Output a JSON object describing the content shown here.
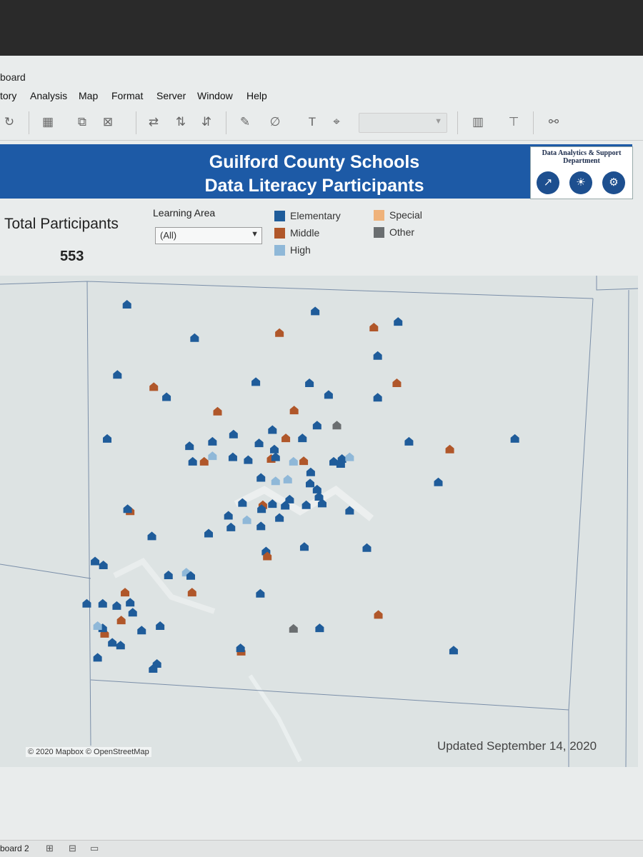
{
  "window": {
    "title": "board"
  },
  "menu": [
    "tory",
    "Analysis",
    "Map",
    "Format",
    "Server",
    "Window",
    "Help"
  ],
  "toolbar": {
    "icons": [
      "redo-icon",
      "new-worksheet-icon",
      "duplicate-icon",
      "clear-sheet-icon",
      "swap-icon",
      "sort-ascending-icon",
      "sort-descending-icon",
      "highlight-icon",
      "group-icon",
      "label-icon",
      "pin-icon",
      "show-cards-icon",
      "presentation-icon",
      "share-icon"
    ]
  },
  "dashboard": {
    "title_line1": "Guilford County Schools",
    "title_line2": "Data Literacy Participants",
    "logo": {
      "text_line1": "Data Analytics & Support",
      "text_line2": "Department",
      "icons": [
        "chart-icon",
        "lightbulb-icon",
        "gears-icon"
      ]
    },
    "kpi": {
      "label": "Total Participants",
      "value": "553"
    },
    "filter": {
      "label": "Learning Area",
      "value": "(All)"
    },
    "legend": [
      {
        "label": "Elementary",
        "color": "#1f5c9a"
      },
      {
        "label": "Middle",
        "color": "#b0572a"
      },
      {
        "label": "High",
        "color": "#8fb8d8"
      },
      {
        "label": "Special",
        "color": "#efb27a"
      },
      {
        "label": "Other",
        "color": "#6a6e70"
      }
    ],
    "attribution": "© 2020 Mapbox © OpenStreetMap",
    "updated": "Updated September 14, 2020"
  },
  "map_points": [
    {
      "t": "Elementary",
      "lon": 0.199,
      "lat": 0.857
    },
    {
      "t": "Elementary",
      "lon": 0.494,
      "lat": 0.845
    },
    {
      "t": "Elementary",
      "lon": 0.624,
      "lat": 0.826
    },
    {
      "t": "Middle",
      "lon": 0.438,
      "lat": 0.806
    },
    {
      "t": "Middle",
      "lon": 0.586,
      "lat": 0.816
    },
    {
      "t": "Elementary",
      "lon": 0.305,
      "lat": 0.797
    },
    {
      "t": "Elementary",
      "lon": 0.592,
      "lat": 0.765
    },
    {
      "t": "Elementary",
      "lon": 0.184,
      "lat": 0.731
    },
    {
      "t": "Elementary",
      "lon": 0.401,
      "lat": 0.718
    },
    {
      "t": "Elementary",
      "lon": 0.485,
      "lat": 0.716
    },
    {
      "t": "Middle",
      "lon": 0.241,
      "lat": 0.709
    },
    {
      "t": "Middle",
      "lon": 0.622,
      "lat": 0.716
    },
    {
      "t": "Elementary",
      "lon": 0.261,
      "lat": 0.691
    },
    {
      "t": "Elementary",
      "lon": 0.515,
      "lat": 0.695
    },
    {
      "t": "Elementary",
      "lon": 0.592,
      "lat": 0.69
    },
    {
      "t": "Middle",
      "lon": 0.341,
      "lat": 0.665
    },
    {
      "t": "Middle",
      "lon": 0.461,
      "lat": 0.667
    },
    {
      "t": "Elementary",
      "lon": 0.497,
      "lat": 0.64
    },
    {
      "t": "Other",
      "lon": 0.528,
      "lat": 0.64
    },
    {
      "t": "Elementary",
      "lon": 0.168,
      "lat": 0.616
    },
    {
      "t": "Elementary",
      "lon": 0.366,
      "lat": 0.624
    },
    {
      "t": "Elementary",
      "lon": 0.427,
      "lat": 0.632
    },
    {
      "t": "Middle",
      "lon": 0.448,
      "lat": 0.617
    },
    {
      "t": "Elementary",
      "lon": 0.474,
      "lat": 0.617
    },
    {
      "t": "Elementary",
      "lon": 0.641,
      "lat": 0.611
    },
    {
      "t": "Elementary",
      "lon": 0.807,
      "lat": 0.616
    },
    {
      "t": "Elementary",
      "lon": 0.333,
      "lat": 0.611
    },
    {
      "t": "Elementary",
      "lon": 0.406,
      "lat": 0.608
    },
    {
      "t": "Elementary",
      "lon": 0.297,
      "lat": 0.603
    },
    {
      "t": "Elementary",
      "lon": 0.43,
      "lat": 0.597
    },
    {
      "t": "Middle",
      "lon": 0.705,
      "lat": 0.597
    },
    {
      "t": "High",
      "lon": 0.333,
      "lat": 0.585
    },
    {
      "t": "Elementary",
      "lon": 0.365,
      "lat": 0.583
    },
    {
      "t": "Elementary",
      "lon": 0.302,
      "lat": 0.575
    },
    {
      "t": "Middle",
      "lon": 0.32,
      "lat": 0.575
    },
    {
      "t": "Elementary",
      "lon": 0.389,
      "lat": 0.578
    },
    {
      "t": "Middle",
      "lon": 0.425,
      "lat": 0.58
    },
    {
      "t": "Elementary",
      "lon": 0.432,
      "lat": 0.583
    },
    {
      "t": "Middle",
      "lon": 0.476,
      "lat": 0.576
    },
    {
      "t": "Elementary",
      "lon": 0.523,
      "lat": 0.575
    },
    {
      "t": "Elementary",
      "lon": 0.536,
      "lat": 0.58
    },
    {
      "t": "High",
      "lon": 0.548,
      "lat": 0.583
    },
    {
      "t": "Elementary",
      "lon": 0.534,
      "lat": 0.571
    },
    {
      "t": "High",
      "lon": 0.46,
      "lat": 0.575
    },
    {
      "t": "Elementary",
      "lon": 0.487,
      "lat": 0.556
    },
    {
      "t": "Elementary",
      "lon": 0.409,
      "lat": 0.546
    },
    {
      "t": "High",
      "lon": 0.432,
      "lat": 0.54
    },
    {
      "t": "High",
      "lon": 0.451,
      "lat": 0.543
    },
    {
      "t": "Elementary",
      "lon": 0.486,
      "lat": 0.536
    },
    {
      "t": "Elementary",
      "lon": 0.687,
      "lat": 0.538
    },
    {
      "t": "Elementary",
      "lon": 0.497,
      "lat": 0.525
    },
    {
      "t": "Elementary",
      "lon": 0.5,
      "lat": 0.512
    },
    {
      "t": "Elementary",
      "lon": 0.454,
      "lat": 0.507
    },
    {
      "t": "Elementary",
      "lon": 0.505,
      "lat": 0.5
    },
    {
      "t": "Elementary",
      "lon": 0.38,
      "lat": 0.501
    },
    {
      "t": "Elementary",
      "lon": 0.427,
      "lat": 0.499
    },
    {
      "t": "Middle",
      "lon": 0.412,
      "lat": 0.497
    },
    {
      "t": "Elementary",
      "lon": 0.447,
      "lat": 0.496
    },
    {
      "t": "Elementary",
      "lon": 0.48,
      "lat": 0.497
    },
    {
      "t": "Elementary",
      "lon": 0.41,
      "lat": 0.49
    },
    {
      "t": "Middle",
      "lon": 0.204,
      "lat": 0.486
    },
    {
      "t": "Elementary",
      "lon": 0.2,
      "lat": 0.49
    },
    {
      "t": "Elementary",
      "lon": 0.358,
      "lat": 0.478
    },
    {
      "t": "High",
      "lon": 0.387,
      "lat": 0.47
    },
    {
      "t": "Elementary",
      "lon": 0.438,
      "lat": 0.474
    },
    {
      "t": "Elementary",
      "lon": 0.548,
      "lat": 0.487
    },
    {
      "t": "Elementary",
      "lon": 0.362,
      "lat": 0.457
    },
    {
      "t": "Elementary",
      "lon": 0.409,
      "lat": 0.459
    },
    {
      "t": "Elementary",
      "lon": 0.327,
      "lat": 0.446
    },
    {
      "t": "Elementary",
      "lon": 0.238,
      "lat": 0.441
    },
    {
      "t": "Elementary",
      "lon": 0.417,
      "lat": 0.414
    },
    {
      "t": "Middle",
      "lon": 0.419,
      "lat": 0.405
    },
    {
      "t": "Elementary",
      "lon": 0.477,
      "lat": 0.422
    },
    {
      "t": "Elementary",
      "lon": 0.575,
      "lat": 0.42
    },
    {
      "t": "Elementary",
      "lon": 0.149,
      "lat": 0.396
    },
    {
      "t": "Elementary",
      "lon": 0.162,
      "lat": 0.389
    },
    {
      "t": "Elementary",
      "lon": 0.264,
      "lat": 0.371
    },
    {
      "t": "High",
      "lon": 0.292,
      "lat": 0.376
    },
    {
      "t": "Elementary",
      "lon": 0.299,
      "lat": 0.37
    },
    {
      "t": "Middle",
      "lon": 0.301,
      "lat": 0.34
    },
    {
      "t": "Middle",
      "lon": 0.196,
      "lat": 0.34
    },
    {
      "t": "Elementary",
      "lon": 0.408,
      "lat": 0.338
    },
    {
      "t": "Elementary",
      "lon": 0.136,
      "lat": 0.32
    },
    {
      "t": "Elementary",
      "lon": 0.161,
      "lat": 0.32
    },
    {
      "t": "Elementary",
      "lon": 0.204,
      "lat": 0.322
    },
    {
      "t": "Elementary",
      "lon": 0.208,
      "lat": 0.304
    },
    {
      "t": "Elementary",
      "lon": 0.183,
      "lat": 0.316
    },
    {
      "t": "Middle",
      "lon": 0.19,
      "lat": 0.29
    },
    {
      "t": "Elementary",
      "lon": 0.222,
      "lat": 0.272
    },
    {
      "t": "Elementary",
      "lon": 0.251,
      "lat": 0.28
    },
    {
      "t": "Middle",
      "lon": 0.593,
      "lat": 0.3
    },
    {
      "t": "Other",
      "lon": 0.46,
      "lat": 0.275
    },
    {
      "t": "Elementary",
      "lon": 0.501,
      "lat": 0.276
    },
    {
      "t": "Middle",
      "lon": 0.164,
      "lat": 0.266
    },
    {
      "t": "Elementary",
      "lon": 0.161,
      "lat": 0.276
    },
    {
      "t": "High",
      "lon": 0.153,
      "lat": 0.28
    },
    {
      "t": "Elementary",
      "lon": 0.176,
      "lat": 0.25
    },
    {
      "t": "Elementary",
      "lon": 0.189,
      "lat": 0.245
    },
    {
      "t": "Middle",
      "lon": 0.378,
      "lat": 0.234
    },
    {
      "t": "Elementary",
      "lon": 0.377,
      "lat": 0.24
    },
    {
      "t": "Elementary",
      "lon": 0.711,
      "lat": 0.236
    },
    {
      "t": "Elementary",
      "lon": 0.153,
      "lat": 0.223
    },
    {
      "t": "Elementary",
      "lon": 0.246,
      "lat": 0.212
    },
    {
      "t": "Elementary",
      "lon": 0.24,
      "lat": 0.203
    }
  ]
}
